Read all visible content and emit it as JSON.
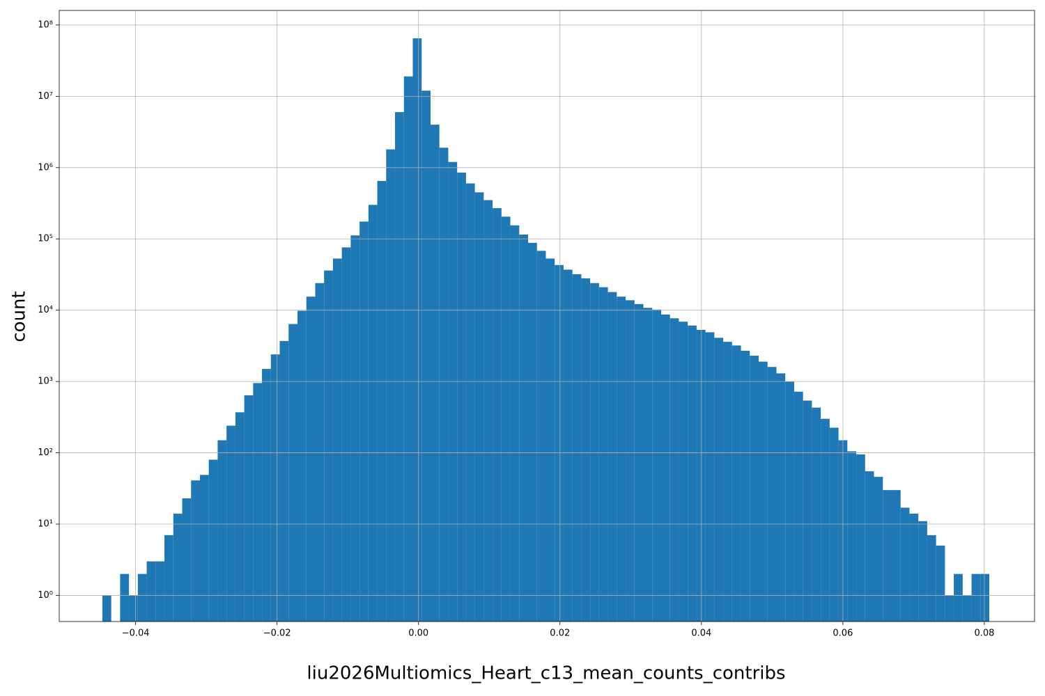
{
  "chart_data": {
    "type": "histogram",
    "x_label": "liu2026Multiomics_Heart_c13_mean_counts_contribs",
    "y_label": "count",
    "color": "#1f77b4",
    "grid": true,
    "y_scale": "log",
    "xlim": [
      -0.0508,
      0.0871
    ],
    "ylim": [
      0.43,
      160000000
    ],
    "xticks": [
      {
        "value": -0.04,
        "label": "−0.04"
      },
      {
        "value": -0.02,
        "label": "−0.02"
      },
      {
        "value": 0,
        "label": "0.00"
      },
      0.02,
      0.04,
      0.06,
      0.08
    ],
    "yticks": [
      {
        "value": 1,
        "label": "10⁰"
      },
      {
        "value": 10,
        "label": "10¹"
      },
      {
        "value": 100,
        "label": "10²"
      },
      {
        "value": 1000,
        "label": "10³"
      },
      {
        "value": 10000,
        "label": "10⁴"
      },
      {
        "value": 100000,
        "label": "10⁵"
      },
      {
        "value": 1000000,
        "label": "10⁶"
      },
      {
        "value": 10000000,
        "label": "10⁷"
      },
      {
        "value": 100000000,
        "label": "10⁸"
      }
    ],
    "bins": [
      -0.0447,
      -0.043446,
      -0.042192,
      -0.040938,
      -0.039684,
      -0.03843,
      -0.037176,
      -0.035922,
      -0.034668,
      -0.033414,
      -0.03216,
      -0.030906,
      -0.029652,
      -0.028398,
      -0.027144,
      -0.02589,
      -0.024636,
      -0.023382,
      -0.022128,
      -0.020874,
      -0.01962,
      -0.018366,
      -0.017112,
      -0.015858,
      -0.014604,
      -0.01335,
      -0.012096,
      -0.010842,
      -0.009588,
      -0.008334,
      -0.00708,
      -0.005826,
      -0.004572,
      -0.003318,
      -0.002064,
      -0.00081,
      0.000444,
      0.001698,
      0.002952,
      0.004206,
      0.00546,
      0.006714,
      0.007968,
      0.009222,
      0.010476,
      0.01173,
      0.012984,
      0.014238,
      0.015492,
      0.016746,
      0.018,
      0.019254,
      0.020508,
      0.021762,
      0.023016,
      0.02427,
      0.025524,
      0.026778,
      0.028032,
      0.029286,
      0.03054,
      0.031794,
      0.033048,
      0.034302,
      0.035556,
      0.03681,
      0.038064,
      0.039318,
      0.040572,
      0.041826,
      0.04308,
      0.044334,
      0.045588,
      0.046842,
      0.048096,
      0.04935,
      0.050604,
      0.051858,
      0.053112,
      0.054366,
      0.05562,
      0.056874,
      0.058128,
      0.059382,
      0.060636,
      0.06189,
      0.063144,
      0.064398,
      0.065652,
      0.066906,
      0.06816,
      0.069414,
      0.070668,
      0.071922,
      0.073176,
      0.07443,
      0.075684,
      0.076938,
      0.078192,
      0.079446,
      0.0807
    ],
    "values": [
      1,
      0,
      2,
      1,
      2,
      3,
      3,
      7,
      14,
      23,
      41,
      49,
      80,
      150,
      240,
      370,
      640,
      950,
      1500,
      2400,
      3700,
      6400,
      9800,
      15500,
      24000,
      36000,
      53000,
      76000,
      112000,
      175000,
      300000,
      650000,
      1800000,
      6000000,
      19000000,
      65000000,
      12000000,
      4000000,
      1900000,
      1200000,
      850000,
      600000,
      450000,
      350000,
      270000,
      205000,
      155000,
      115000,
      88000,
      68000,
      53000,
      43000,
      37000,
      32000,
      28000,
      24000,
      21000,
      18000,
      15500,
      13800,
      12200,
      10800,
      10200,
      8700,
      7700,
      6900,
      6100,
      5300,
      4900,
      4100,
      3600,
      3200,
      2700,
      2300,
      1900,
      1600,
      1300,
      1000,
      720,
      540,
      430,
      300,
      225,
      150,
      105,
      95,
      55,
      46,
      30,
      30,
      17,
      14,
      11,
      7,
      5,
      1,
      2,
      1,
      2,
      2
    ]
  }
}
